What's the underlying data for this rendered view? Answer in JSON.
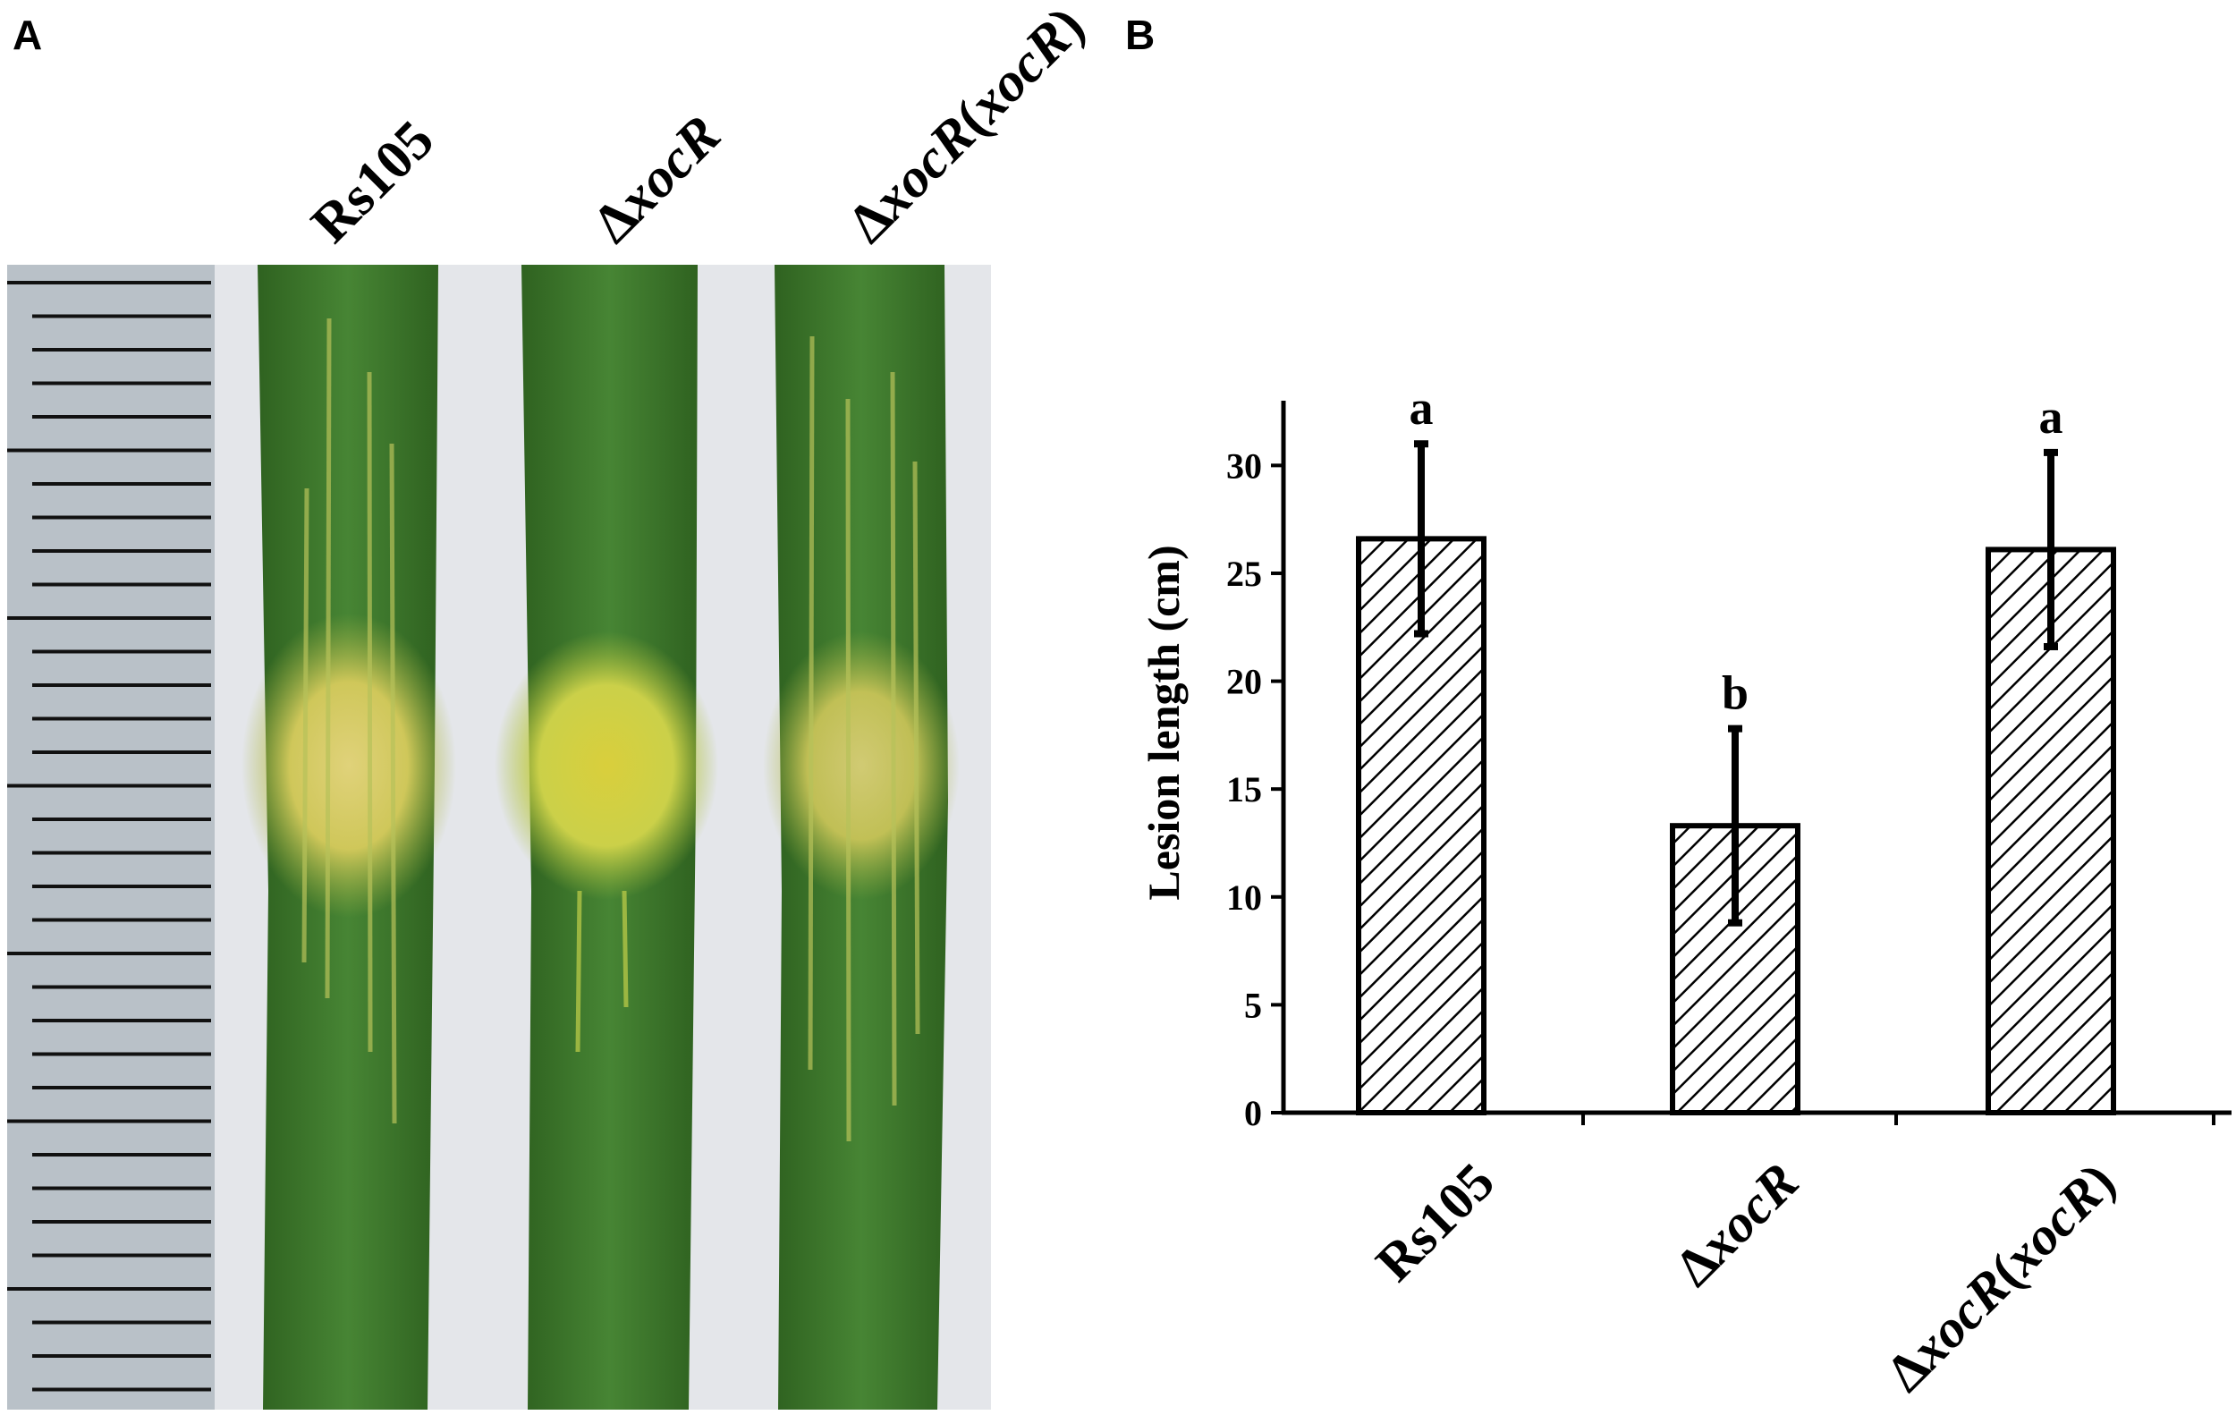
{
  "panels": {
    "a_letter": "A",
    "b_letter": "B"
  },
  "photo": {
    "labels": [
      {
        "text": "Rs105",
        "mutant": false
      },
      {
        "prefix": "Δ",
        "italic": "xocR",
        "mutant": true
      },
      {
        "prefix": "Δ",
        "italic": "xocR",
        "open": "(",
        "italic2": "xocR",
        "close": ")",
        "mutant": true,
        "complemented": true
      }
    ],
    "colors": {
      "leaf": "#3f7a2c",
      "leaf_dark": "#2f6220",
      "lesion": "#d8cf60",
      "paper": "#e4e6ea",
      "ruler": "#b9c1c8"
    }
  },
  "chart_data": {
    "type": "bar",
    "categories": [
      "Rs105",
      "ΔxocR",
      "ΔxocR(xocR)"
    ],
    "values": [
      26.6,
      13.3,
      26.1
    ],
    "errors": [
      4.4,
      4.5,
      4.5
    ],
    "significance": [
      "a",
      "b",
      "a"
    ],
    "title": "",
    "xlabel": "",
    "ylabel": "Lesion length (cm)",
    "ylim": [
      0,
      33
    ],
    "yticks": [
      0,
      5,
      10,
      15,
      20,
      25,
      30
    ],
    "grid": false,
    "legend": "none",
    "bar_pattern": "diagonal-hatch",
    "bar_color": "#000000"
  }
}
